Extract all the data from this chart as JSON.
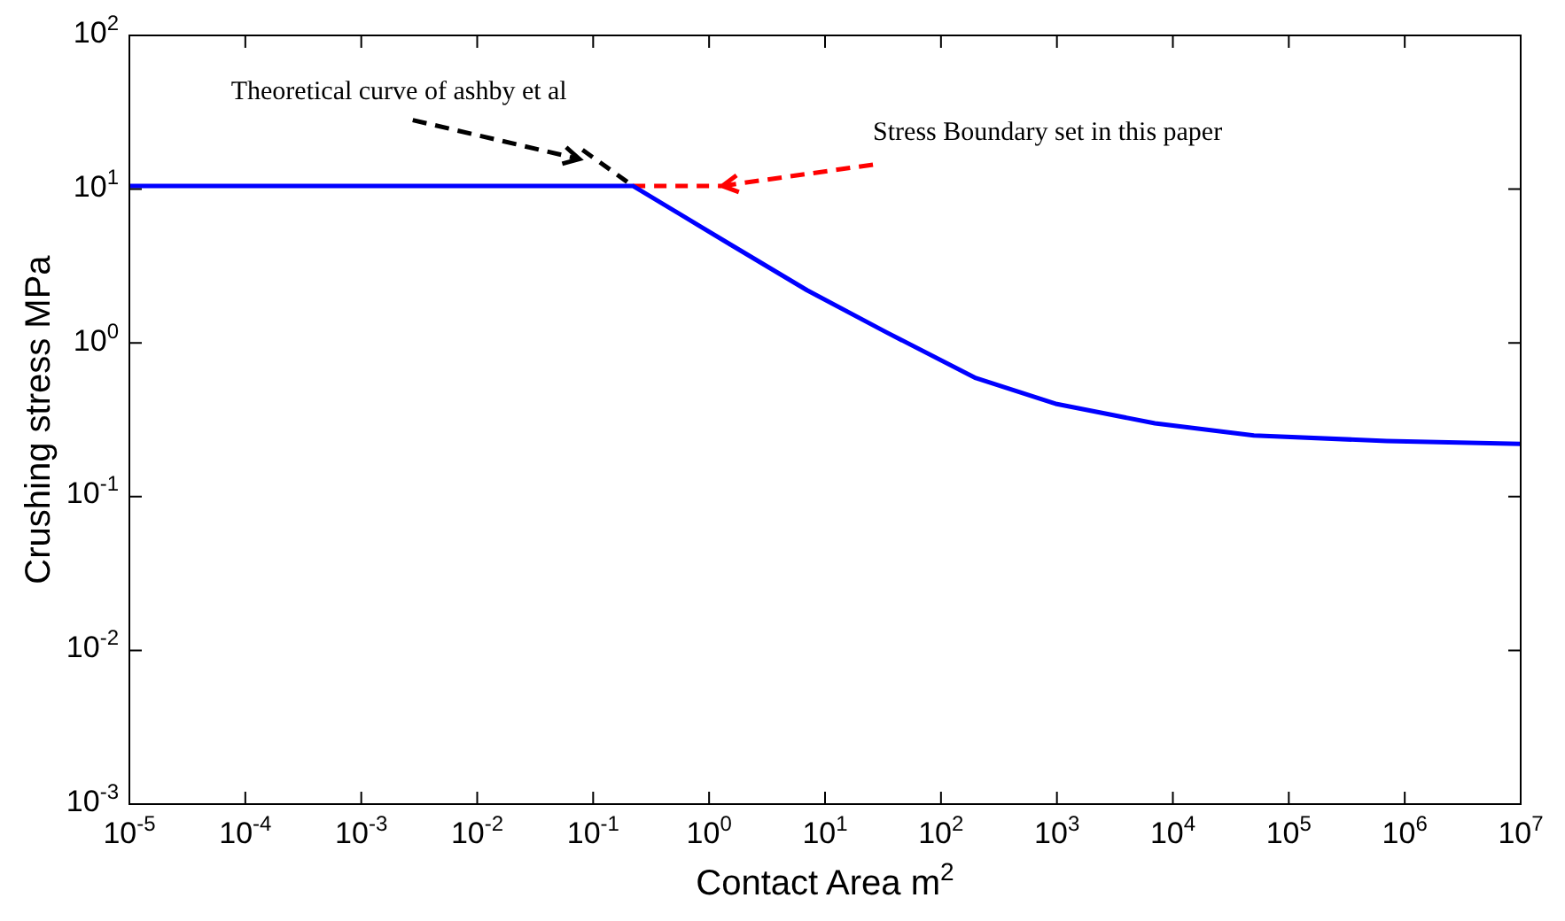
{
  "chart_data": {
    "type": "line",
    "xlabel": "Contact Area m$^{2}$",
    "ylabel": "Crushing stress MPa",
    "log": "xy",
    "grid": false,
    "legend": false,
    "marker": "none",
    "xlim": [
      1e-05,
      10000000.0
    ],
    "ylim": [
      0.001,
      100
    ],
    "xticks": [
      {
        "value": 1e-05,
        "label": "10$^{-5}$"
      },
      {
        "value": 0.0001,
        "label": "10$^{-4}$"
      },
      {
        "value": 0.001,
        "label": "10$^{-3}$"
      },
      {
        "value": 0.01,
        "label": "10$^{-2}$"
      },
      {
        "value": 0.1,
        "label": "10$^{-1}$"
      },
      {
        "value": 1,
        "label": "10$^{0}$"
      },
      {
        "value": 10,
        "label": "10$^{1}$"
      },
      {
        "value": 100,
        "label": "10$^{2}$"
      },
      {
        "value": 1000,
        "label": "10$^{3}$"
      },
      {
        "value": 10000.0,
        "label": "10$^{4}$"
      },
      {
        "value": 100000.0,
        "label": "10$^{5}$"
      },
      {
        "value": 1000000.0,
        "label": "10$^{6}$"
      },
      {
        "value": 10000000.0,
        "label": "10$^{7}$"
      }
    ],
    "yticks": [
      {
        "value": 0.001,
        "label": "10$^{-3}$"
      },
      {
        "value": 0.01,
        "label": "10$^{-2}$"
      },
      {
        "value": 0.1,
        "label": "10$^{-1}$"
      },
      {
        "value": 1,
        "label": "10$^{0}$"
      },
      {
        "value": 10,
        "label": "10$^{1}$"
      },
      {
        "value": 100,
        "label": "10$^{2}$"
      }
    ],
    "series": [
      {
        "color": "#0000ff",
        "line_style": "solid",
        "x": [
          1e-05,
          0.22,
          1.5,
          7,
          34,
          200,
          1000,
          7000,
          50000,
          700000,
          10000000.0
        ],
        "values": [
          10.5,
          10.5,
          4.4,
          2.2,
          1.17,
          0.59,
          0.4,
          0.3,
          0.25,
          0.23,
          0.22
        ]
      },
      {
        "color": "#000000",
        "line_style": "dashed",
        "x": [
          0.081,
          0.22
        ],
        "values": [
          18,
          10.5
        ]
      },
      {
        "color": "#ff0000",
        "line_style": "dashed",
        "x": [
          0.22,
          1.28
        ],
        "values": [
          10.5,
          10.5
        ]
      }
    ],
    "annotations": [
      {
        "text": "Theoretical curve of ashby et al",
        "x": 0.076,
        "y": 15.7
      },
      {
        "text": "Stress Boundary set in this paper",
        "x": 1.3,
        "y": 10.5
      }
    ]
  }
}
